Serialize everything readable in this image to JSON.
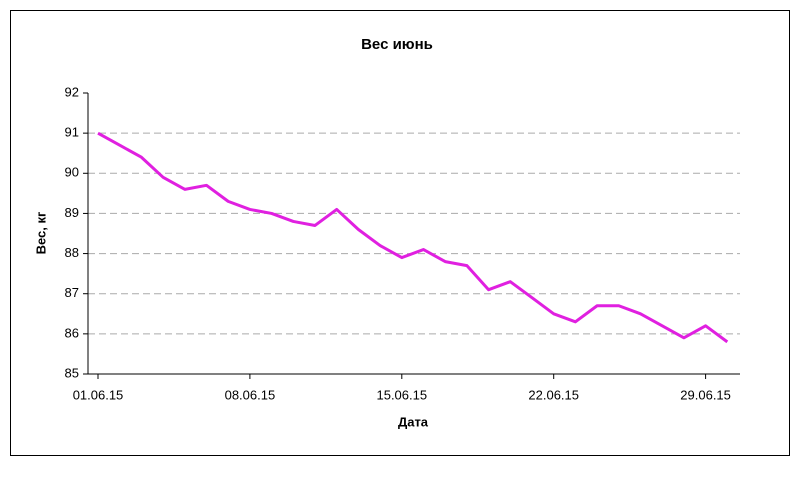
{
  "chart_data": {
    "type": "line",
    "title": "Вес июнь",
    "x_label": "Дата",
    "y_label": "Вес, кг",
    "categories": [
      "01.06.15",
      null,
      null,
      null,
      null,
      null,
      null,
      "08.06.15",
      null,
      null,
      null,
      null,
      null,
      null,
      "15.06.15",
      null,
      null,
      null,
      null,
      null,
      null,
      "22.06.15",
      null,
      null,
      null,
      null,
      null,
      null,
      "29.06.15",
      null
    ],
    "values": [
      91.0,
      90.7,
      90.4,
      89.9,
      89.6,
      89.7,
      89.3,
      89.1,
      89.0,
      88.8,
      88.7,
      89.1,
      88.6,
      88.2,
      87.9,
      88.1,
      87.8,
      87.7,
      87.1,
      87.3,
      86.9,
      86.5,
      86.3,
      86.7,
      86.7,
      86.5,
      86.2,
      85.9,
      86.2,
      85.8
    ],
    "color": "#e020e0",
    "ylim": [
      85,
      92
    ],
    "yticks": [
      85,
      86,
      87,
      88,
      89,
      90,
      91,
      92
    ],
    "grid": true
  }
}
